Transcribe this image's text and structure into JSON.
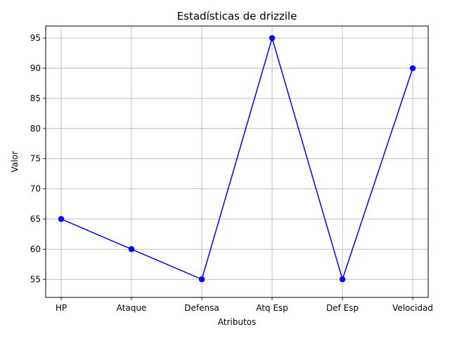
{
  "chart_data": {
    "type": "line",
    "title": "Estadísticas de drizzile",
    "xlabel": "Atributos",
    "ylabel": "Valor",
    "categories": [
      "HP",
      "Ataque",
      "Defensa",
      "Atq Esp",
      "Def Esp",
      "Velocidad"
    ],
    "series": [
      {
        "values": [
          65,
          60,
          55,
          95,
          55,
          90
        ],
        "color": "#0000ff",
        "marker": "circle"
      }
    ],
    "ylim": [
      52.0,
      97.0
    ],
    "yticks": [
      55,
      60,
      65,
      70,
      75,
      80,
      85,
      90,
      95
    ],
    "grid": true
  }
}
